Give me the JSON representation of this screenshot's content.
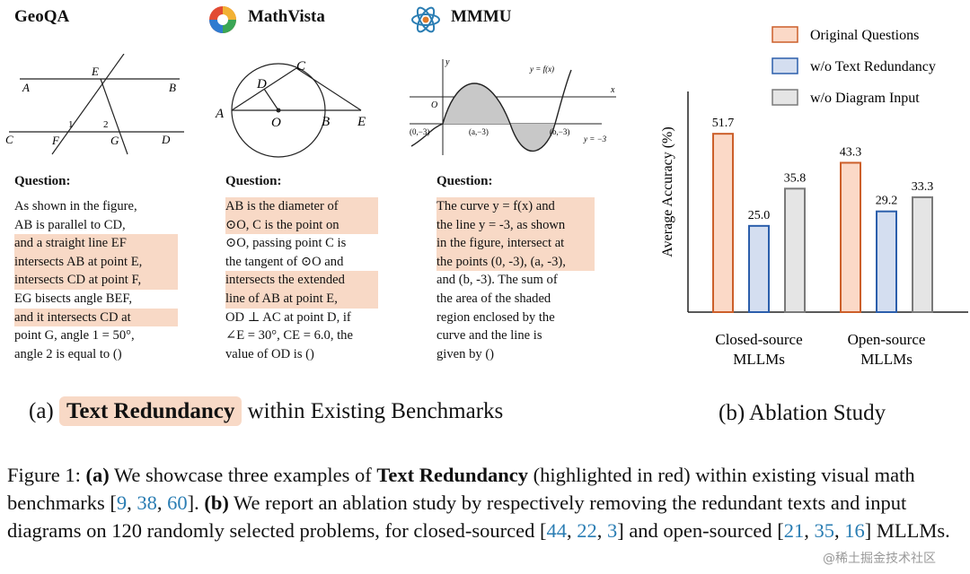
{
  "benchmarks": {
    "geoqa": {
      "title": "GeoQA",
      "question_label": "Question:",
      "lines": [
        "As shown in the figure,",
        "AB is parallel to CD,",
        "and a straight line EF",
        "intersects AB at point E,",
        "intersects CD at point F,",
        "EG bisects angle BEF,",
        "and it intersects CD at",
        "point G, angle 1 = 50°,",
        "angle 2 is equal to ()"
      ],
      "diagram_labels": {
        "A": "A",
        "B": "B",
        "C": "C",
        "D": "D",
        "E": "E",
        "F": "F",
        "G": "G",
        "one": "1",
        "two": "2"
      }
    },
    "mathvista": {
      "title": "MathVista",
      "question_label": "Question:",
      "lines": [
        "AB is the diameter of",
        "⊙O, C is the point on",
        "⊙O, passing point C is",
        "the tangent of ⊙O and",
        "intersects the extended",
        "line of AB at point E,",
        "OD ⊥ AC at point D, if",
        "∠E = 30°, CE = 6.0, the",
        "value of OD is ()"
      ],
      "diagram_labels": {
        "A": "A",
        "B": "B",
        "C": "C",
        "D": "D",
        "E": "E",
        "O": "O"
      }
    },
    "mmmu": {
      "title": "MMMU",
      "question_label": "Question:",
      "lines": [
        "The curve y = f(x) and",
        "the line y = -3, as shown",
        "in the figure, intersect at",
        "the points (0, -3), (a, -3),",
        "and (b, -3). The sum of",
        "the area of the shaded",
        "region enclosed by the",
        "curve and the line is",
        "given by ()"
      ],
      "diagram_labels": {
        "y": "y",
        "x": "x",
        "O": "O",
        "fx": "y = f(x)",
        "ym3": "y = −3",
        "p0": "(0,−3)",
        "pa": "(a,−3)",
        "pb": "(b,−3)"
      }
    }
  },
  "caption_a": {
    "prefix": "(a)",
    "highlight": "Text Redundancy",
    "suffix": "within Existing Benchmarks"
  },
  "caption_b": "(b)  Ablation Study",
  "figure_caption": {
    "fig": "Figure 1:",
    "a": "(a)",
    "t1": "We showcase three examples of",
    "tr": "Text Redundancy",
    "t2": "(highlighted in red) within existing visual math benchmarks [",
    "c1": "9",
    "sep1": ", ",
    "c2": "38",
    "sep2": ", ",
    "c3": "60",
    "t3": "].",
    "b": "(b)",
    "t4": "We report an ablation study by respectively removing the redundant texts and input diagrams on 120 randomly selected problems, for closed-sourced [",
    "c4": "44",
    "sep3": ", ",
    "c5": "22",
    "sep4": ", ",
    "c6": "3",
    "t5": "] and open-sourced [",
    "c7": "21",
    "sep5": ", ",
    "c8": "35",
    "sep6": ", ",
    "c9": "16",
    "t6": "] MLLMs."
  },
  "watermark": "@稀土掘金技术社区",
  "colors": {
    "highlight": "#f8d9c6",
    "orange": "#cc5f2a",
    "orange_fill": "#fbd9c7",
    "blue": "#2b5eab",
    "blue_fill": "#d4def0",
    "gray": "#7a7a7a",
    "gray_fill": "#e5e5e5"
  },
  "chart_data": {
    "type": "bar",
    "categories": [
      "Closed-source MLLMs",
      "Open-source MLLMs"
    ],
    "category_lines": [
      [
        "Closed-source",
        "MLLMs"
      ],
      [
        "Open-source",
        "MLLMs"
      ]
    ],
    "series": [
      {
        "name": "Original Questions",
        "values": [
          51.7,
          43.3
        ]
      },
      {
        "name": "w/o Text Redundancy",
        "values": [
          25.0,
          29.2
        ]
      },
      {
        "name": "w/o Diagram Input",
        "values": [
          35.8,
          33.3
        ]
      }
    ],
    "value_labels": [
      [
        "51.7",
        "43.3"
      ],
      [
        "25.0",
        "29.2"
      ],
      [
        "35.8",
        "33.3"
      ]
    ],
    "ylabel": "Average Accuracy (%)",
    "xlabel": "",
    "ylim": [
      0,
      65
    ],
    "grid": false,
    "legend": "top-right"
  }
}
